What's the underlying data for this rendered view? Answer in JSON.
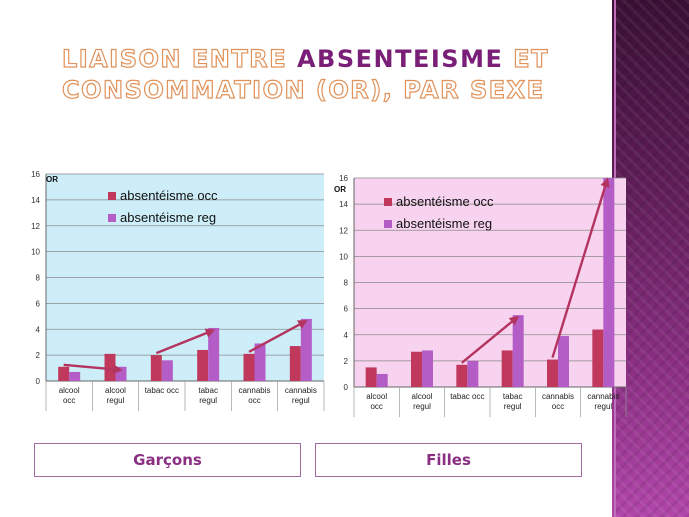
{
  "title": {
    "part1": "Liaison entre",
    "highlight": "absenteisme",
    "part2": "et consommation (OR), par sexe"
  },
  "colors": {
    "occ": "#c0395d",
    "reg": "#b45dc7",
    "arrow": "#b4345f",
    "plot_bg_left": "#cdeef9",
    "plot_bg_right": "#f7d3ef",
    "grid": "#8a8a8a",
    "title_outline": "#e0925a",
    "title_highlight": "#7a1f78"
  },
  "chart_data": [
    {
      "type": "bar",
      "title": "",
      "ylabel": "OR",
      "ylim": [
        0,
        16
      ],
      "ytick_step": 2,
      "grid": true,
      "legend_position": "top-left",
      "categories": [
        [
          "alcool",
          "occ"
        ],
        [
          "alcool",
          "regul"
        ],
        [
          "tabac occ"
        ],
        [
          "tabac",
          "regul"
        ],
        [
          "cannabis",
          "occ"
        ],
        [
          "cannabis",
          "regul"
        ]
      ],
      "series": [
        {
          "name": "absentéisme occ",
          "values": [
            1.1,
            2.1,
            2.0,
            2.4,
            2.1,
            2.7
          ]
        },
        {
          "name": "absentéisme reg",
          "values": [
            0.7,
            1.1,
            1.6,
            4.1,
            2.9,
            4.8
          ]
        }
      ]
    },
    {
      "type": "bar",
      "title": "",
      "ylabel": "OR",
      "ylim": [
        0,
        16
      ],
      "ytick_step": 2,
      "grid": true,
      "legend_position": "top-left",
      "categories": [
        [
          "alcool",
          "occ"
        ],
        [
          "alcool",
          "regul"
        ],
        [
          "tabac occ"
        ],
        [
          "tabac",
          "regul"
        ],
        [
          "cannabis",
          "occ"
        ],
        [
          "cannabis",
          "regul"
        ]
      ],
      "series": [
        {
          "name": "absentéisme occ",
          "values": [
            1.5,
            2.7,
            1.7,
            2.8,
            2.1,
            4.4
          ]
        },
        {
          "name": "absentéisme reg",
          "values": [
            1.0,
            2.8,
            2.0,
            5.5,
            3.9,
            16.0
          ]
        }
      ]
    }
  ],
  "labels": {
    "left": "Garçons",
    "right": "Filles"
  }
}
